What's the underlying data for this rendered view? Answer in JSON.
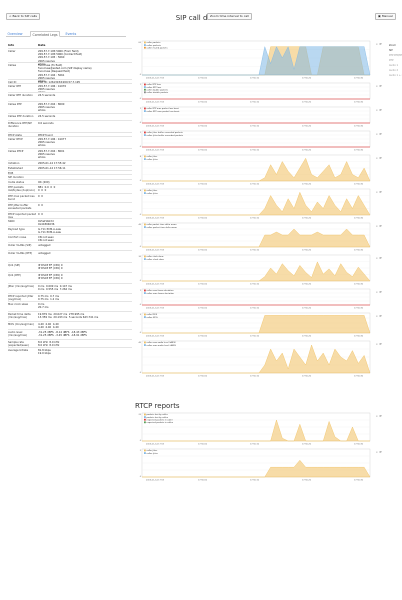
{
  "header": {
    "back_label": "< Back to SIP calls",
    "title": "SIP call details",
    "zoom_label": "Zoom time interval to call",
    "manual_label": "Manual"
  },
  "tabs": [
    {
      "label": "Overview"
    },
    {
      "label": "Correlated Legs"
    },
    {
      "label": "Events"
    }
  ],
  "info": {
    "col_info": "Info",
    "col_data": "Data",
    "rows": [
      {
        "k": "Caller",
        "v": "209.57.7.195:5060 (From field)\n209.57.7.195:5060 (Contact field)\n209.57.7.195 : 5060\n2065 resolve\nwhois",
        "h": 14
      },
      {
        "k": "Callee",
        "v": "fnoocluss (To field)\nfnoocluss@exted.com (SIP display name)\nfnoocluss (Request field)\n209.57.7.194 : 5061\n2065 resolve\nwhois",
        "h": 17
      },
      {
        "k": "Call ID",
        "v": "CSR ID: 1261303@209.57.7.195",
        "h": 4
      },
      {
        "k": "Caller RTP",
        "v": "209.57.7.196 : 41070\n2065 resolve\nwhois",
        "h": 9
      },
      {
        "k": "Caller RTP duration",
        "v": "24.5 seconds",
        "h": 9
      },
      {
        "k": "Callee RTP",
        "v": "209.57.7.204 : 8000\n2065 resolve\nwhois",
        "h": 12
      },
      {
        "k": "Callee RTP duration",
        "v": "24.5 seconds",
        "h": 7
      },
      {
        "k": "Difference RTP/SIP duration",
        "v": "0.0 seconds",
        "h": 12
      },
      {
        "k": "RTCP state",
        "v": "RTCP found",
        "h": 4
      },
      {
        "k": "Caller RTCP",
        "v": "209.57.7.196 : 41077\n2065 resolve\nwhois",
        "h": 12
      },
      {
        "k": "Callee RTCP",
        "v": "209.57.7.204 : 8001\n2065 resolve\nwhois",
        "h": 12
      },
      {
        "k": "Initiation",
        "v": "2005-01-14 17:55:42",
        "h": 5
      },
      {
        "k": "Established",
        "v": "2005-01-14 17:56:11",
        "h": 5
      },
      {
        "k": "ECB",
        "v": "",
        "h": 4
      },
      {
        "k": "SIP duration",
        "v": "",
        "h": 5
      },
      {
        "k": "Invite status",
        "v": "OK (200)",
        "h": 5
      },
      {
        "k": "RTP packets lost/bytes (dupl/ooo)",
        "v": "881  0.0  0  0\n0  0  0",
        "h": 9
      },
      {
        "k": "RTP max packet loss burst",
        "v": "0  0",
        "h": 9
      },
      {
        "k": "RTP jitter buffer exceeded packets",
        "v": "0  0",
        "h": 9
      },
      {
        "k": "RTCP reported packet loss",
        "v": "0  0",
        "h": 7
      },
      {
        "k": "SSRC",
        "v": "0x5ef1bb3d\n0x41804636",
        "h": 8
      },
      {
        "k": "Payload type",
        "v": "G.711 PCM-A-Law\nG.711 PCM-A-Law",
        "h": 8
      },
      {
        "k": "Comfort noise",
        "v": "CN not seen\nCN not seen",
        "h": 8
      },
      {
        "k": "Outer VLANs (SIP)",
        "v": "untagged",
        "h": 8
      },
      {
        "k": "Outer VLANs (RTP)",
        "v": "untagged",
        "h": 12
      },
      {
        "k": "QoS (SIP)",
        "v": "IP DSCP EF (CS5) 0\nIP DSCP EF (CS5) 0",
        "h": 10
      },
      {
        "k": "QoS (RTP)",
        "v": "IP DSCP EF (CS5) 0\nIP DSCP EF (CS5) 0",
        "h": 11
      },
      {
        "k": "Jitter (min/avg/max)",
        "v": "0 ms  0.009 ms  0.147 ms\n0 ms  0.555 ms  7.262 ms",
        "h": 10
      },
      {
        "k": "RTCP reported jitter (avg/max)",
        "v": "0.75 ms  0.7 ms\n0.75 ms  1.2 ms",
        "h": 8
      },
      {
        "k": "Max clock skew",
        "v": "0 ms\n20.7 ms",
        "h": 10
      },
      {
        "k": "Packet time delta (min/avg/max)",
        "v": "19.879 ms  20.027 ms  278.995 ms\n13.359 ms  20.193 ms  5 seconds 643.741 ms",
        "h": 10
      },
      {
        "k": "MOS (min/avg/max)",
        "v": "4.40  4.40  4.40\n4.40  4.40  4.40",
        "h": 8
      },
      {
        "k": "Audio level (min/avg/max)",
        "v": "-31.25 dBFS  -8.14 dBFS  -18.43 dBFS\n-31.25 dBFS  -3.45 dBFS  -18.91 dBFS",
        "h": 10
      },
      {
        "k": "Sample rate (expected/seen)",
        "v": "8.0 kHz  8.0 kHz\n8.0 kHz  8.0 kHz",
        "h": 8
      },
      {
        "k": "Average bitrate",
        "v": "81.8 kbps\n19.0 kbps",
        "h": 8
      }
    ]
  },
  "charts": [
    {
      "legend": [
        "caller packets",
        "callee packets",
        "caller muted packets"
      ],
      "h": 40,
      "ymax": 60,
      "colors": [
        "#f0c060",
        "#7fb8e6",
        "#e89a3c"
      ],
      "x": [
        "2005-01-14 17:55",
        "17:56:00",
        "17:56:10",
        "17:56:20",
        "17:56:30"
      ],
      "series": [
        [
          0,
          0,
          0,
          0,
          0,
          0,
          0,
          0,
          0,
          0,
          0,
          0,
          0,
          0,
          0,
          0,
          0,
          0,
          0,
          0,
          0,
          0,
          50,
          50,
          50,
          50,
          50,
          50,
          50,
          0,
          0,
          50,
          50,
          50,
          50,
          50,
          50,
          50,
          0,
          0
        ],
        [
          0,
          0,
          0,
          0,
          0,
          0,
          0,
          0,
          0,
          0,
          0,
          0,
          0,
          0,
          0,
          0,
          0,
          0,
          0,
          0,
          0,
          50,
          20,
          50,
          30,
          50,
          10,
          50,
          50,
          50,
          50,
          50,
          50,
          50,
          50,
          50,
          50,
          50,
          50,
          0
        ]
      ]
    },
    {
      "legend": [
        "caller RTP loss",
        "callee RTP loss",
        "caller double packets",
        "callee double packets"
      ],
      "h": 22,
      "ymax": 1,
      "colors": [
        "#e04040",
        "#7fb8e6",
        "#5aa05a",
        "#888888"
      ],
      "x": [
        "2005-01-14 17:55",
        "17:56:00",
        "17:56:10",
        "17:56:20",
        "17:56:30"
      ],
      "series": [
        [
          0,
          0,
          0,
          0,
          0,
          0,
          0,
          0,
          0,
          0,
          0,
          0,
          0,
          0,
          0,
          0,
          0,
          0,
          0,
          0,
          0,
          0,
          0,
          0,
          0,
          0,
          0,
          0,
          0,
          0,
          0,
          0,
          0,
          0,
          0,
          0,
          0,
          0,
          0,
          0
        ]
      ]
    },
    {
      "legend": [
        "caller RTP max packet loss burst",
        "callee RTP max packet loss burst"
      ],
      "h": 22,
      "ymax": 1,
      "colors": [
        "#e04040",
        "#7fb8e6"
      ],
      "x": [
        "2005-01-14 17:55",
        "17:56:00",
        "17:56:10",
        "17:56:20",
        "17:56:30"
      ],
      "series": [
        [
          0,
          0,
          0,
          0,
          0,
          0,
          0,
          0,
          0,
          0,
          0,
          0,
          0,
          0,
          0,
          0,
          0,
          0,
          0,
          0,
          0,
          0,
          0,
          0,
          0,
          0,
          0,
          0,
          0,
          0,
          0,
          0,
          0,
          0,
          0,
          0,
          0,
          0,
          0,
          0
        ]
      ]
    },
    {
      "legend": [
        "caller jitter buffer exceeded packets",
        "callee jitter buffer exceeded packets"
      ],
      "h": 22,
      "ymax": 1,
      "colors": [
        "#e04040",
        "#7fb8e6"
      ],
      "x": [
        "2005-01-14 17:55",
        "17:56:00",
        "17:56:10",
        "17:56:20",
        "17:56:30"
      ],
      "series": [
        [
          0,
          0,
          0,
          0,
          0,
          0,
          0,
          0,
          0,
          0,
          0,
          0,
          0,
          0,
          0,
          0,
          0,
          0,
          0,
          0,
          0,
          0,
          0,
          0,
          0,
          0,
          0,
          0,
          0,
          0,
          0,
          0,
          0,
          0,
          0,
          0,
          0,
          0,
          0,
          0
        ]
      ]
    },
    {
      "legend": [
        "caller jitter",
        "callee jitter"
      ],
      "h": 32,
      "ymax": 8,
      "colors": [
        "#f0c060",
        "#7fb8e6"
      ],
      "x": [
        "2005-01-14 17:55",
        "17:56:00",
        "17:56:10",
        "17:56:20",
        "17:56:30"
      ],
      "series": [
        [
          0,
          0,
          0,
          0,
          0,
          0,
          0,
          0,
          0,
          0,
          0,
          0,
          0,
          0,
          0,
          0,
          0,
          0,
          0,
          0,
          0,
          1,
          5,
          2,
          6,
          3,
          1,
          4,
          7,
          2,
          1,
          3,
          5,
          1,
          2,
          6,
          2,
          1,
          4,
          0
        ]
      ]
    },
    {
      "legend": [
        "caller jitter",
        "callee jitter"
      ],
      "h": 32,
      "ymax": 8,
      "colors": [
        "#f0c060",
        "#7fb8e6"
      ],
      "x": [
        "2005-01-14 17:55",
        "17:56:00",
        "17:56:10",
        "17:56:20",
        "17:56:30"
      ],
      "series": [
        [
          0,
          0,
          0,
          0,
          0,
          0,
          0,
          0,
          0,
          0,
          0,
          0,
          0,
          0,
          0,
          0,
          0,
          0,
          0,
          0,
          0,
          2,
          6,
          3,
          1,
          5,
          2,
          7,
          3,
          1,
          4,
          2,
          6,
          3,
          1,
          5,
          2,
          6,
          3,
          0
        ]
      ]
    },
    {
      "legend": [
        "caller packet time delta mean",
        "callee packet time delta mean"
      ],
      "h": 30,
      "ymax": 40,
      "colors": [
        "#f0c060",
        "#7fb8e6"
      ],
      "x": [
        "2005-01-14 17:55",
        "17:56:00",
        "17:56:10",
        "17:56:20",
        "17:56:30"
      ],
      "series": [
        [
          0,
          0,
          0,
          0,
          0,
          0,
          0,
          0,
          0,
          0,
          0,
          0,
          0,
          0,
          0,
          0,
          0,
          0,
          0,
          0,
          0,
          20,
          20,
          25,
          20,
          20,
          30,
          20,
          20,
          20,
          25,
          20,
          20,
          20,
          20,
          30,
          20,
          20,
          20,
          0
        ]
      ]
    },
    {
      "legend": [
        "caller clock skew",
        "callee clock skew"
      ],
      "h": 32,
      "ymax": 30,
      "colors": [
        "#f0c060",
        "#7fb8e6"
      ],
      "x": [
        "2005-01-14 17:55",
        "17:56:00",
        "17:56:10",
        "17:56:20",
        "17:56:30"
      ],
      "series": [
        [
          0,
          0,
          0,
          0,
          0,
          0,
          0,
          0,
          0,
          0,
          0,
          0,
          0,
          0,
          0,
          0,
          0,
          0,
          0,
          0,
          0,
          5,
          15,
          8,
          20,
          12,
          6,
          18,
          10,
          4,
          22,
          8,
          14,
          6,
          20,
          10,
          5,
          16,
          8,
          0
        ]
      ]
    },
    {
      "legend": [
        "caller max frame deviation",
        "callee max frame deviation"
      ],
      "h": 22,
      "ymax": 1,
      "colors": [
        "#e04040",
        "#7fb8e6"
      ],
      "x": [
        "2005-01-14 17:55",
        "17:56:00",
        "17:56:10",
        "17:56:20",
        "17:56:30"
      ],
      "series": [
        [
          0,
          0,
          0,
          0,
          0,
          0,
          0,
          0,
          0,
          0,
          0,
          0,
          0,
          0,
          0,
          0,
          0,
          0,
          0,
          0,
          0,
          0,
          0,
          0,
          0,
          0,
          0,
          0,
          0,
          0,
          0,
          0,
          0,
          0,
          0,
          0,
          0,
          0,
          0,
          0
        ]
      ]
    },
    {
      "legend": [
        "caller MOS",
        "callee MOS"
      ],
      "h": 26,
      "ymax": 5,
      "colors": [
        "#f0c060",
        "#7fb8e6"
      ],
      "x": [
        "2005-01-14 17:55",
        "17:56:00",
        "17:56:10",
        "17:56:20",
        "17:56:30"
      ],
      "series": [
        [
          0,
          0,
          0,
          0,
          0,
          0,
          0,
          0,
          0,
          0,
          0,
          0,
          0,
          0,
          0,
          0,
          0,
          0,
          0,
          0,
          0,
          4.4,
          4.4,
          4.4,
          4.4,
          4.4,
          4.4,
          4.4,
          4.4,
          4.4,
          4.4,
          4.4,
          4.4,
          4.4,
          4.4,
          4.4,
          4.4,
          4.4,
          4.4,
          0
        ]
      ]
    },
    {
      "legend": [
        "caller max audio level (dBFS)",
        "callee max audio level (dBFS)"
      ],
      "h": 38,
      "ymax": 40,
      "colors": [
        "#f0c060",
        "#7fb8e6"
      ],
      "x": [
        "2005-01-14 17:55",
        "17:56:00",
        "17:56:10",
        "17:56:20",
        "17:56:30"
      ],
      "series": [
        [
          0,
          0,
          0,
          0,
          0,
          0,
          0,
          0,
          0,
          0,
          0,
          0,
          0,
          0,
          0,
          0,
          0,
          0,
          0,
          0,
          0,
          10,
          30,
          15,
          25,
          5,
          30,
          20,
          10,
          35,
          15,
          25,
          10,
          30,
          20,
          15,
          28,
          12,
          22,
          0
        ]
      ]
    }
  ],
  "rtcp": {
    "title": "RTCP reports",
    "charts": [
      {
        "legend": [
          "packets lost by caller",
          "packets lost by callee",
          "expected packets in caller",
          "expected packets in callee"
        ],
        "h": 34,
        "ymax": 20,
        "colors": [
          "#f0c060",
          "#7fb8e6",
          "#e04040",
          "#5aa05a"
        ],
        "x": [
          "2005-01-14 17:55",
          "17:56:00",
          "17:56:10",
          "17:56:20",
          "17:56:30"
        ],
        "series": [
          [
            0,
            0,
            0,
            0,
            0,
            0,
            0,
            0,
            0,
            0,
            0,
            0,
            0,
            0,
            0,
            0,
            0,
            0,
            0,
            0,
            0,
            0,
            0,
            15,
            2,
            0,
            0,
            12,
            0,
            0,
            0,
            0,
            14,
            3,
            0,
            0,
            10,
            0,
            0,
            0
          ]
        ]
      },
      {
        "legend": [
          "caller jitter",
          "callee jitter"
        ],
        "h": 34,
        "ymax": 2,
        "colors": [
          "#f0c060",
          "#7fb8e6"
        ],
        "x": [
          "2005-01-14 17:55",
          "17:56:00",
          "17:56:10",
          "17:56:20",
          "17:56:30"
        ],
        "series": [
          [
            0,
            0,
            0,
            0,
            0,
            0,
            0,
            0,
            0,
            0,
            0,
            0,
            0,
            0,
            0,
            0,
            0,
            0,
            0,
            0,
            0,
            0,
            0.7,
            0.7,
            0.7,
            0.7,
            0.7,
            1.2,
            0.7,
            0.7,
            0.7,
            0.7,
            0.7,
            0.7,
            0.7,
            0.7,
            0.7,
            0.7,
            0.7,
            0
          ]
        ]
      }
    ]
  },
  "sidebar": {
    "items": [
      {
        "label": "Zoom",
        "on": true
      },
      {
        "label": "SIP",
        "on": true
      },
      {
        "label": "RTP RTP/RTCP",
        "on": false
      },
      {
        "label": "RTP",
        "on": false
      },
      {
        "label": "Audio 1",
        "on": false
      },
      {
        "label": "Audio 2",
        "on": false
      },
      {
        "label": "Audio 1 + 2",
        "on": false
      }
    ]
  }
}
